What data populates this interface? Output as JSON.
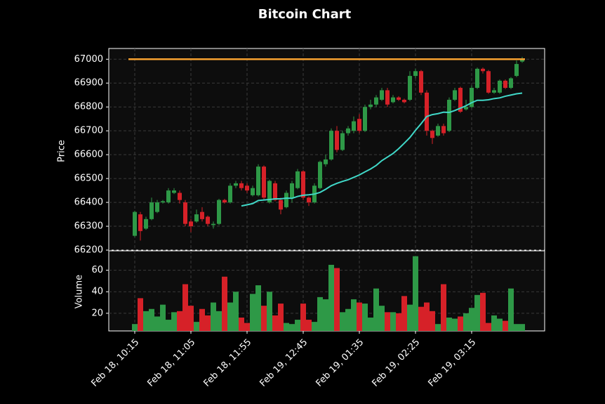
{
  "chart_data": {
    "type": "candlestick",
    "title": "Bitcoin Chart",
    "y_label": "Price",
    "volume_label": "Volume",
    "categories": [
      "Feb 18, 10:15",
      null,
      null,
      null,
      null,
      null,
      null,
      null,
      null,
      null,
      "Feb 18, 11:05",
      null,
      null,
      null,
      null,
      null,
      null,
      null,
      null,
      null,
      "Feb 18, 11:55",
      null,
      null,
      null,
      null,
      null,
      null,
      null,
      null,
      null,
      "Feb 19, 12:45",
      null,
      null,
      null,
      null,
      null,
      null,
      null,
      null,
      null,
      "Feb 19, 01:35",
      null,
      null,
      null,
      null,
      null,
      null,
      null,
      null,
      null,
      "Feb 19, 02:25",
      null,
      null,
      null,
      null,
      null,
      null,
      null,
      null,
      null,
      "Feb 19, 03:15",
      null,
      null,
      null,
      null,
      null,
      null,
      null,
      null,
      null
    ],
    "open": [
      66260,
      66350,
      66290,
      66330,
      66360,
      66400,
      66400,
      66440,
      66440,
      66400,
      66320,
      66320,
      66360,
      66340,
      66305,
      66310,
      66410,
      66400,
      66470,
      66480,
      66470,
      66430,
      66430,
      66550,
      66400,
      66480,
      66410,
      66380,
      66420,
      66460,
      66530,
      66420,
      66400,
      66460,
      66560,
      66580,
      66700,
      66620,
      66690,
      66700,
      66750,
      66700,
      66800,
      66810,
      66830,
      66870,
      66820,
      66840,
      66830,
      66830,
      66930,
      66950,
      66860,
      66700,
      66680,
      66720,
      66700,
      66830,
      66880,
      66790,
      66800,
      66880,
      66960,
      66950,
      66860,
      66860,
      66910,
      66880,
      66930,
      66990
    ],
    "high": [
      66365,
      66360,
      66340,
      66420,
      66410,
      66410,
      66460,
      66460,
      66450,
      66410,
      66330,
      66370,
      66380,
      66345,
      66320,
      66415,
      66415,
      66480,
      66490,
      66490,
      66480,
      66470,
      66560,
      66555,
      66495,
      66490,
      66420,
      66450,
      66490,
      66540,
      66535,
      66425,
      66480,
      66575,
      66600,
      66710,
      66720,
      66700,
      66720,
      66760,
      66770,
      66810,
      66830,
      66850,
      66880,
      66880,
      66850,
      66845,
      66835,
      66950,
      66960,
      66955,
      66870,
      66705,
      66730,
      66730,
      66840,
      66880,
      66885,
      66830,
      66890,
      66965,
      66965,
      66955,
      66880,
      66915,
      66915,
      66925,
      66995,
      67010
    ],
    "low": [
      66255,
      66240,
      66285,
      66325,
      66355,
      66395,
      66395,
      66435,
      66395,
      66300,
      66275,
      66315,
      66320,
      66300,
      66290,
      66305,
      66395,
      66395,
      66460,
      66450,
      66440,
      66425,
      66425,
      66410,
      66395,
      66405,
      66350,
      66375,
      66400,
      66455,
      66410,
      66385,
      66395,
      66455,
      66550,
      66575,
      66610,
      66615,
      66680,
      66690,
      66690,
      66695,
      66790,
      66800,
      66825,
      66800,
      66815,
      66825,
      66815,
      66825,
      66920,
      66850,
      66680,
      66645,
      66675,
      66680,
      66695,
      66825,
      66775,
      66785,
      66795,
      66875,
      66940,
      66855,
      66855,
      66855,
      66875,
      66875,
      66925,
      66985
    ],
    "close": [
      66360,
      66280,
      66330,
      66400,
      66400,
      66405,
      66450,
      66450,
      66410,
      66310,
      66300,
      66350,
      66330,
      66310,
      66310,
      66410,
      66400,
      66470,
      66480,
      66460,
      66450,
      66460,
      66550,
      66420,
      66490,
      66410,
      66370,
      66440,
      66480,
      66530,
      66420,
      66400,
      66470,
      66570,
      66580,
      66700,
      66620,
      66690,
      66710,
      66740,
      66700,
      66800,
      66810,
      66840,
      66870,
      66810,
      66840,
      66830,
      66820,
      66930,
      66950,
      66860,
      66700,
      66670,
      66720,
      66690,
      66830,
      66870,
      66780,
      66800,
      66880,
      66960,
      66950,
      66860,
      66870,
      66910,
      66880,
      66920,
      66980,
      67000
    ],
    "volume": [
      10,
      34,
      22,
      24,
      17,
      28,
      14,
      21,
      22,
      47,
      27,
      12,
      24,
      18,
      30,
      22,
      54,
      30,
      40,
      16,
      11,
      38,
      46,
      27,
      40,
      18,
      29,
      11,
      10,
      14,
      29,
      14,
      12,
      35,
      33,
      65,
      62,
      21,
      24,
      33,
      30,
      29,
      16,
      43,
      27,
      21,
      21,
      20,
      36,
      28,
      73,
      26,
      30,
      22,
      10,
      47,
      16,
      15,
      17,
      20,
      25,
      37,
      39,
      11,
      18,
      15,
      13,
      43,
      10,
      10
    ],
    "ma": [
      null,
      null,
      null,
      null,
      null,
      null,
      null,
      null,
      null,
      null,
      null,
      null,
      null,
      null,
      null,
      null,
      null,
      null,
      null,
      66385,
      66390,
      66395,
      66408,
      66410,
      66412,
      66415,
      66415,
      66418,
      66417,
      66425,
      66430,
      66432,
      66435,
      66442,
      66455,
      66470,
      66480,
      66488,
      66495,
      66505,
      66515,
      66528,
      66540,
      66555,
      66575,
      66590,
      66605,
      66625,
      66648,
      66672,
      66702,
      66730,
      66760,
      66768,
      66772,
      66778,
      66777,
      66785,
      66795,
      66805,
      66818,
      66828,
      66828,
      66830,
      66835,
      66838,
      66845,
      66850,
      66855,
      66858
    ],
    "hline": 67000,
    "up_color": "#2e9947",
    "down_color": "#d62128",
    "ma_color": "#40d8c8",
    "hline_color": "#f5a030",
    "ylim": [
      66200,
      67045
    ],
    "yticks": [
      66200,
      66300,
      66400,
      66500,
      66600,
      66700,
      66800,
      66900,
      67000
    ],
    "volume_ylim": [
      3.6,
      78
    ],
    "volume_yticks": [
      20,
      40,
      60
    ],
    "grid": true
  }
}
